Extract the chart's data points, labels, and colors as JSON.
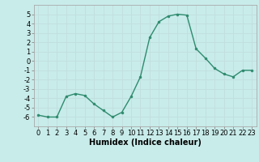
{
  "x": [
    0,
    1,
    2,
    3,
    4,
    5,
    6,
    7,
    8,
    9,
    10,
    11,
    12,
    13,
    14,
    15,
    16,
    17,
    18,
    19,
    20,
    21,
    22,
    23
  ],
  "y": [
    -5.8,
    -6.0,
    -6.0,
    -3.8,
    -3.5,
    -3.7,
    -4.6,
    -5.3,
    -6.0,
    -5.5,
    -3.8,
    -1.7,
    2.5,
    4.2,
    4.8,
    5.0,
    4.9,
    1.3,
    0.3,
    -0.8,
    -1.4,
    -1.7,
    -1.0,
    -1.0
  ],
  "line_color": "#2e8b6e",
  "marker_color": "#2e8b6e",
  "bg_color": "#c8ecea",
  "grid_color": "#c0dede",
  "xlabel": "Humidex (Indice chaleur)",
  "ylim": [
    -7,
    6
  ],
  "xlim": [
    -0.5,
    23.5
  ],
  "yticks": [
    -6,
    -5,
    -4,
    -3,
    -2,
    -1,
    0,
    1,
    2,
    3,
    4,
    5
  ],
  "xticks": [
    0,
    1,
    2,
    3,
    4,
    5,
    6,
    7,
    8,
    9,
    10,
    11,
    12,
    13,
    14,
    15,
    16,
    17,
    18,
    19,
    20,
    21,
    22,
    23
  ],
  "xtick_labels": [
    "0",
    "1",
    "2",
    "3",
    "4",
    "5",
    "6",
    "7",
    "8",
    "9",
    "10",
    "11",
    "12",
    "13",
    "14",
    "15",
    "16",
    "17",
    "18",
    "19",
    "20",
    "21",
    "22",
    "23"
  ],
  "xlabel_fontsize": 7,
  "tick_fontsize": 6,
  "fig_bg_color": "#c8ecea"
}
